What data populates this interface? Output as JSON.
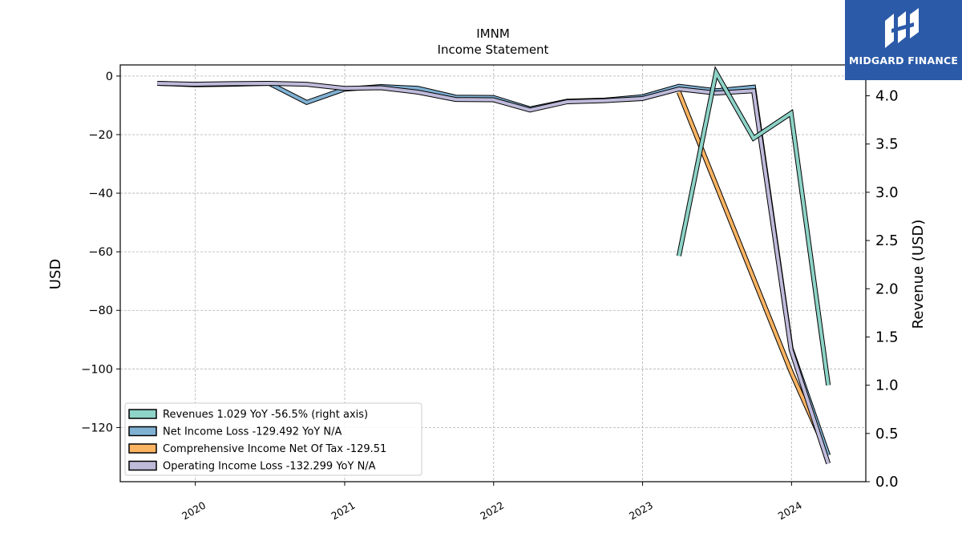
{
  "brand": {
    "name": "MIDGARD FINANCE",
    "color": "#2b5aa8"
  },
  "chart_data": {
    "type": "line",
    "title": "IMNM",
    "subtitle": "Income Statement",
    "ylabel": "USD",
    "ylabel_right": "Revenue (USD)",
    "ylim": [
      -138.5,
      3.8
    ],
    "ylim_right": [
      0,
      4.32
    ],
    "xlim": [
      "2019-07-01",
      "2024-07-01"
    ],
    "y_ticks": [
      0,
      -20,
      -40,
      -60,
      -80,
      -100,
      -120
    ],
    "y_tick_labels": [
      "0",
      "−20",
      "−40",
      "−60",
      "−80",
      "−100",
      "−120"
    ],
    "y_right_ticks": [
      0.0,
      0.5,
      1.0,
      1.5,
      2.0,
      2.5,
      3.0,
      3.5,
      4.0
    ],
    "y_right_tick_labels": [
      "0.0",
      "0.5",
      "1.0",
      "1.5",
      "2.0",
      "2.5",
      "3.0",
      "3.5",
      "4.0"
    ],
    "x_ticks": [
      "2020-01-01",
      "2021-01-01",
      "2022-01-01",
      "2023-01-01",
      "2024-01-01"
    ],
    "x_tick_labels": [
      "2020",
      "2021",
      "2022",
      "2023",
      "2024"
    ],
    "grid": true,
    "legend_position": "bottom-left",
    "series": [
      {
        "name": "Revenues  1.029 YoY -56.5% (right axis)",
        "axis": "right",
        "color": "#8dd3c7",
        "points": [
          [
            "2023-03-31",
            2.34
          ],
          [
            "2023-06-30",
            4.24
          ],
          [
            "2023-09-30",
            3.56
          ],
          [
            "2023-12-31",
            3.82
          ],
          [
            "2024-03-31",
            1.0
          ]
        ]
      },
      {
        "name": "Net Income Loss  -129.492 YoY N/A",
        "axis": "left",
        "color": "#80b1d3",
        "points": [
          [
            "2019-09-30",
            -2.5
          ],
          [
            "2019-12-31",
            -3.0
          ],
          [
            "2020-03-31",
            -2.8
          ],
          [
            "2020-06-30",
            -2.5
          ],
          [
            "2020-09-30",
            -9.0
          ],
          [
            "2020-12-31",
            -4.5
          ],
          [
            "2021-03-31",
            -3.6
          ],
          [
            "2021-06-30",
            -4.2
          ],
          [
            "2021-09-30",
            -7.2
          ],
          [
            "2021-12-31",
            -7.3
          ],
          [
            "2022-03-31",
            -11.2
          ],
          [
            "2022-06-30",
            -8.6
          ],
          [
            "2022-09-30",
            -8.2
          ],
          [
            "2022-12-31",
            -7.1
          ],
          [
            "2023-03-31",
            -3.5
          ],
          [
            "2023-06-30",
            -5.0
          ],
          [
            "2023-09-30",
            -3.8
          ],
          [
            "2023-12-31",
            -93.0
          ],
          [
            "2024-03-31",
            -129.5
          ]
        ]
      },
      {
        "name": "Comprehensive Income Net Of Tax  -129.51",
        "axis": "left",
        "color": "#fdb462",
        "points": [
          [
            "2023-03-31",
            -5.5
          ],
          [
            "2023-12-31",
            -101.0
          ],
          [
            "2024-03-31",
            -129.5
          ]
        ]
      },
      {
        "name": "Operating Income Loss  -132.299 YoY N/A",
        "axis": "left",
        "color": "#bebada",
        "points": [
          [
            "2019-09-30",
            -2.5
          ],
          [
            "2019-12-31",
            -2.8
          ],
          [
            "2020-03-31",
            -2.6
          ],
          [
            "2020-06-30",
            -2.5
          ],
          [
            "2020-09-30",
            -2.8
          ],
          [
            "2020-12-31",
            -4.2
          ],
          [
            "2021-03-31",
            -4.0
          ],
          [
            "2021-06-30",
            -5.5
          ],
          [
            "2021-09-30",
            -8.0
          ],
          [
            "2021-12-31",
            -8.1
          ],
          [
            "2022-03-31",
            -11.6
          ],
          [
            "2022-06-30",
            -8.8
          ],
          [
            "2022-09-30",
            -8.4
          ],
          [
            "2022-12-31",
            -7.7
          ],
          [
            "2023-03-31",
            -4.4
          ],
          [
            "2023-06-30",
            -5.8
          ],
          [
            "2023-09-30",
            -5.0
          ],
          [
            "2023-12-31",
            -93.5
          ],
          [
            "2024-03-31",
            -132.3
          ]
        ]
      }
    ]
  }
}
